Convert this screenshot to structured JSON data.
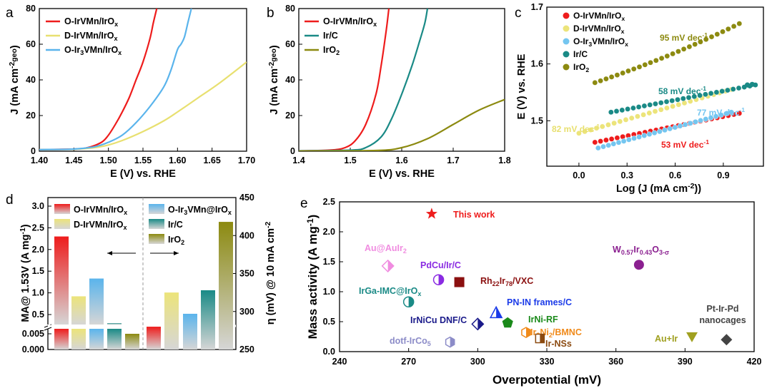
{
  "chart_data": [
    {
      "panel": "a",
      "type": "line",
      "xlabel": "E (V) vs. RHE",
      "ylabel": "J (mA cm",
      "ylabel_sup": "-2",
      "ylabel_sub": "geo",
      "ylabel_end": ")",
      "xlim": [
        1.4,
        1.7
      ],
      "ylim": [
        0,
        80
      ],
      "xticks": [
        "1.40",
        "1.45",
        "1.50",
        "1.55",
        "1.60",
        "1.65",
        "1.70"
      ],
      "yticks": [
        "0",
        "20",
        "40",
        "60",
        "80"
      ],
      "series": [
        {
          "name": "O-IrVMn/IrO",
          "sub": "x",
          "color": "#ee1c1c",
          "points": [
            [
              1.4,
              0.9
            ],
            [
              1.45,
              1.2
            ],
            [
              1.47,
              2
            ],
            [
              1.49,
              5
            ],
            [
              1.5,
              9
            ],
            [
              1.51,
              15
            ],
            [
              1.52,
              22
            ],
            [
              1.53,
              30
            ],
            [
              1.54,
              40
            ],
            [
              1.55,
              50
            ],
            [
              1.56,
              63
            ],
            [
              1.565,
              72
            ],
            [
              1.57,
              80
            ]
          ]
        },
        {
          "name": "D-IrVMn/IrO",
          "sub": "x",
          "color": "#e8e070",
          "points": [
            [
              1.4,
              0.9
            ],
            [
              1.45,
              1.1
            ],
            [
              1.48,
              2
            ],
            [
              1.5,
              3.5
            ],
            [
              1.52,
              6
            ],
            [
              1.55,
              11
            ],
            [
              1.58,
              17
            ],
            [
              1.6,
              22
            ],
            [
              1.63,
              30
            ],
            [
              1.66,
              38
            ],
            [
              1.7,
              50
            ]
          ]
        },
        {
          "name": "O-Ir",
          "sub": "3",
          "name2": "VMn/IrO",
          "sub2": "x",
          "color": "#5ab4ec",
          "points": [
            [
              1.4,
              0.9
            ],
            [
              1.45,
              1.2
            ],
            [
              1.48,
              2.5
            ],
            [
              1.5,
              5
            ],
            [
              1.52,
              9
            ],
            [
              1.54,
              16
            ],
            [
              1.56,
              25
            ],
            [
              1.58,
              36
            ],
            [
              1.59,
              45
            ],
            [
              1.6,
              57
            ],
            [
              1.605,
              60
            ],
            [
              1.61,
              64
            ],
            [
              1.615,
              72
            ],
            [
              1.62,
              80
            ]
          ]
        }
      ]
    },
    {
      "panel": "b",
      "type": "line",
      "xlabel": "E (V) vs. RHE",
      "ylabel": "J (mA cm",
      "ylabel_sup": "-2",
      "ylabel_sub": "geo",
      "ylabel_end": ")",
      "xlim": [
        1.4,
        1.8
      ],
      "ylim": [
        0,
        80
      ],
      "xticks": [
        "1.4",
        "1.5",
        "1.6",
        "1.7",
        "1.8"
      ],
      "yticks": [
        "0",
        "20",
        "40",
        "60",
        "80"
      ],
      "series": [
        {
          "name": "O-IrVMn/IrO",
          "sub": "x",
          "color": "#ee1c1c",
          "points": [
            [
              1.4,
              0.2
            ],
            [
              1.46,
              0.6
            ],
            [
              1.49,
              2
            ],
            [
              1.51,
              6
            ],
            [
              1.53,
              15
            ],
            [
              1.55,
              32
            ],
            [
              1.56,
              48
            ],
            [
              1.57,
              68
            ],
            [
              1.575,
              80
            ]
          ]
        },
        {
          "name": "Ir/C",
          "sub": "",
          "color": "#1a8a86",
          "points": [
            [
              1.4,
              0.2
            ],
            [
              1.5,
              0.6
            ],
            [
              1.53,
              2
            ],
            [
              1.56,
              8
            ],
            [
              1.58,
              18
            ],
            [
              1.6,
              32
            ],
            [
              1.62,
              48
            ],
            [
              1.635,
              62
            ],
            [
              1.645,
              72
            ],
            [
              1.65,
              80
            ]
          ]
        },
        {
          "name": "IrO",
          "sub": "2",
          "color": "#8c8a10",
          "points": [
            [
              1.4,
              0.1
            ],
            [
              1.55,
              0.4
            ],
            [
              1.6,
              2
            ],
            [
              1.65,
              7
            ],
            [
              1.7,
              15
            ],
            [
              1.75,
              23
            ],
            [
              1.8,
              29
            ]
          ]
        }
      ]
    },
    {
      "panel": "c",
      "type": "scatter",
      "xlabel": "Log (J (mA cm",
      "xlabel_sup": "-2",
      "xlabel_end": "))",
      "ylabel": "E (V) vs. RHE",
      "xlim": [
        -0.2,
        1.15
      ],
      "ylim": [
        1.42,
        1.7
      ],
      "xticks": [
        "0.0",
        "0.3",
        "0.6",
        "0.9"
      ],
      "yticks": [
        "1.5",
        "1.6",
        "1.7"
      ],
      "series": [
        {
          "name": "O-IrVMn/IrO",
          "sub": "x",
          "color": "#ee1c1c",
          "fit": [
            [
              0.1,
              1.462
            ],
            [
              1.0,
              1.513
            ]
          ],
          "tafel": "53 mV dec",
          "tafel_sup": "-1"
        },
        {
          "name": "D-IrVMn/IrO",
          "sub": "x",
          "color": "#ece47a",
          "fit": [
            [
              0.0,
              1.478
            ],
            [
              0.95,
              1.555
            ]
          ],
          "tafel": "82 mV dec",
          "tafel_sup": "-1"
        },
        {
          "name": "O-Ir",
          "sub": "3",
          "name2": "VMn/IrO",
          "sub2": "x",
          "color": "#74c6f0",
          "fit": [
            [
              0.12,
              1.452
            ],
            [
              0.95,
              1.515
            ]
          ],
          "tafel": "77 mV dec",
          "tafel_sup": "-1"
        },
        {
          "name": "Ir/C",
          "sub": "",
          "color": "#1a8a86",
          "fit": [
            [
              0.2,
              1.515
            ],
            [
              1.1,
              1.563
            ]
          ],
          "tafel": "58 mV dec",
          "tafel_sup": "-1"
        },
        {
          "name": "IrO",
          "sub": "2",
          "color": "#8c8a10",
          "fit": [
            [
              0.1,
              1.567
            ],
            [
              1.0,
              1.653
            ]
          ],
          "tafel": "95 mV dec",
          "tafel_sup": "-1"
        }
      ]
    },
    {
      "panel": "d",
      "type": "bar",
      "ylabel_left": "MA@ 1.53V (A mg",
      "ylabel_left_sup": "-1",
      "ylabel_left_end": ")",
      "ylabel_right": "η (mV) @ 10 mA cm",
      "ylabel_right_sup": "-2",
      "yticks_left_upper": [
        "0.5",
        "1.0",
        "1.5",
        "2.0",
        "2.5",
        "3.0"
      ],
      "yticks_left_lower": [
        "0.000",
        "0.005"
      ],
      "yticks_right": [
        "250",
        "300",
        "350",
        "400",
        "450"
      ],
      "mass_activity": [
        2.3,
        0.92,
        1.33,
        0.3,
        0.005
      ],
      "overpotential": [
        280,
        325,
        297,
        328,
        418
      ],
      "colors": [
        "#ee1c1c",
        "#ece47a",
        "#5ab4ec",
        "#1a8a86",
        "#8c8a10"
      ],
      "legend": [
        {
          "name": "O-IrVMn/IrO",
          "sub": "x"
        },
        {
          "name": "D-IrVMn/IrO",
          "sub": "x"
        },
        {
          "name": "O-Ir",
          "sub": "3",
          "name2": "VMn@IrO",
          "sub2": "x"
        },
        {
          "name": "Ir/C",
          "sub": ""
        },
        {
          "name": "IrO",
          "sub": "2"
        }
      ]
    },
    {
      "panel": "e",
      "type": "scatter",
      "xlabel": "Overpotential (mV)",
      "ylabel": "Mass activity (A mg",
      "ylabel_sup": "-1",
      "ylabel_end": ")",
      "xlim": [
        240,
        420
      ],
      "ylim": [
        0,
        2.5
      ],
      "xticks": [
        "240",
        "270",
        "300",
        "330",
        "360",
        "390",
        "420"
      ],
      "yticks": [
        "0.0",
        "0.5",
        "1.0",
        "1.5",
        "2.0",
        "2.5"
      ],
      "points": [
        {
          "label": "This work",
          "x": 280,
          "y": 2.3,
          "color": "#ee1c1c",
          "shape": "star"
        },
        {
          "label": "Au@AuIr",
          "sub": "2",
          "x": 261,
          "y": 1.43,
          "color": "#f08ce0",
          "shape": "diamond-half"
        },
        {
          "label": "PdCu/Ir/C",
          "x": 283,
          "y": 1.2,
          "color": "#8a2be2",
          "shape": "circle-half"
        },
        {
          "label": "Rh",
          "sub": "22",
          "label2": "Ir",
          "sub2": "78",
          "label3": "/VXC",
          "x": 292,
          "y": 1.16,
          "color": "#8b1010",
          "shape": "square"
        },
        {
          "label": "W",
          "sub": "0.57",
          "label2": "Ir",
          "sub2": "0.43",
          "label3": "O",
          "sub3": "3-σ",
          "x": 370,
          "y": 1.45,
          "color": "#8b2090",
          "shape": "circle"
        },
        {
          "label": "IrGa-IMC@IrO",
          "sub": "x",
          "x": 270,
          "y": 0.83,
          "color": "#1a8a86",
          "shape": "circle-half"
        },
        {
          "label": "PN-IN frames/C",
          "x": 308,
          "y": 0.65,
          "color": "#1a3ae8",
          "shape": "triangle-half"
        },
        {
          "label": "IrNiCu DNF/C",
          "x": 300,
          "y": 0.46,
          "color": "#1a1a8a",
          "shape": "diamond-half"
        },
        {
          "label": "IrNi-RF",
          "x": 313,
          "y": 0.48,
          "color": "#1a8a1a",
          "shape": "pentagon"
        },
        {
          "label": "Ir",
          "sub": "3",
          "label2": "Ni",
          "sub2": "2",
          "label3": "/BMNC",
          "x": 321,
          "y": 0.32,
          "color": "#f08a1a",
          "shape": "hexagon-half"
        },
        {
          "label": "Ir-NSs",
          "x": 327,
          "y": 0.22,
          "color": "#8b4a10",
          "shape": "square-half"
        },
        {
          "label": "dotf-IrCo",
          "sub": "5",
          "x": 288,
          "y": 0.16,
          "color": "#8c8cc8",
          "shape": "hexagon-half"
        },
        {
          "label": "Au+Ir",
          "x": 393,
          "y": 0.24,
          "color": "#a0a020",
          "shape": "triangle-down"
        },
        {
          "label": "Pt-Ir-Pd",
          "label_line2": "nanocages",
          "x": 408,
          "y": 0.2,
          "color": "#444444",
          "shape": "diamond"
        }
      ]
    }
  ]
}
